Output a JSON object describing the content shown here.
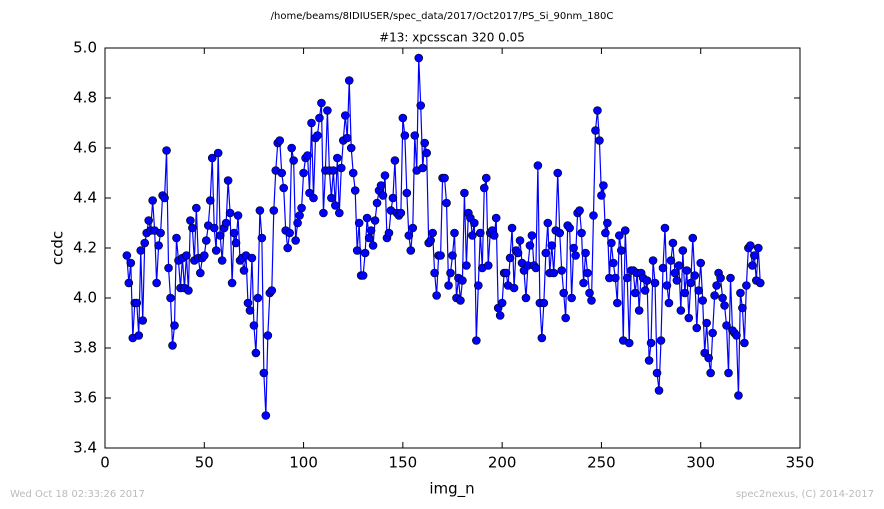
{
  "chart_data": {
    "type": "line",
    "suptitle": "/home/beams/8IDIUSER/spec_data/2017/Oct2017/PS_Si_90nm_180C",
    "title": "#13: xpcsscan 320 0.05",
    "xlabel": "img_n",
    "ylabel": "ccdc",
    "footer_left": "Wed Oct 18 02:33:26 2017",
    "footer_right": "spec2nexus, (C) 2014-2017",
    "xlim": [
      0,
      350
    ],
    "xticks": [
      0,
      50,
      100,
      150,
      200,
      250,
      300,
      350
    ],
    "ylim": [
      3.4,
      5.0
    ],
    "yticks": [
      {
        "value": 3.4,
        "label": "3.4"
      },
      {
        "value": 3.6,
        "label": "3.6"
      },
      {
        "value": 3.8,
        "label": "3.8"
      },
      {
        "value": 4.0,
        "label": "4.0"
      },
      {
        "value": 4.2,
        "label": "4.2"
      },
      {
        "value": 4.4,
        "label": "4.4"
      },
      {
        "value": 4.6,
        "label": "4.6"
      },
      {
        "value": 4.8,
        "label": "4.8"
      },
      {
        "value": 5.0,
        "label": "5.0"
      }
    ],
    "grid": false,
    "x": [
      11,
      12,
      13,
      14,
      15,
      16,
      17,
      18,
      19,
      20,
      21,
      22,
      23,
      24,
      25,
      26,
      27,
      28,
      29,
      30,
      31,
      32,
      33,
      34,
      35,
      36,
      37,
      38,
      39,
      40,
      41,
      42,
      43,
      44,
      45,
      46,
      47,
      48,
      49,
      50,
      51,
      52,
      53,
      54,
      55,
      56,
      57,
      58,
      59,
      60,
      61,
      62,
      63,
      64,
      65,
      66,
      67,
      68,
      69,
      70,
      71,
      72,
      73,
      74,
      75,
      76,
      77,
      78,
      79,
      80,
      81,
      82,
      83,
      84,
      85,
      86,
      87,
      88,
      89,
      90,
      91,
      92,
      93,
      94,
      95,
      96,
      97,
      98,
      99,
      100,
      101,
      102,
      103,
      104,
      105,
      106,
      107,
      108,
      109,
      110,
      111,
      112,
      113,
      114,
      115,
      116,
      117,
      118,
      119,
      120,
      121,
      122,
      123,
      124,
      125,
      126,
      127,
      128,
      129,
      130,
      131,
      132,
      133,
      134,
      135,
      136,
      137,
      138,
      139,
      140,
      141,
      142,
      143,
      144,
      145,
      146,
      147,
      148,
      149,
      150,
      151,
      152,
      153,
      154,
      155,
      156,
      157,
      158,
      159,
      160,
      161,
      162,
      163,
      164,
      165,
      166,
      167,
      168,
      169,
      170,
      171,
      172,
      173,
      174,
      175,
      176,
      177,
      178,
      179,
      180,
      181,
      182,
      183,
      184,
      185,
      186,
      187,
      188,
      189,
      190,
      191,
      192,
      193,
      194,
      195,
      196,
      197,
      198,
      199,
      200,
      201,
      202,
      203,
      204,
      205,
      206,
      207,
      208,
      209,
      210,
      211,
      212,
      213,
      214,
      215,
      216,
      217,
      218,
      219,
      220,
      221,
      222,
      223,
      224,
      225,
      226,
      227,
      228,
      229,
      230,
      231,
      232,
      233,
      234,
      235,
      236,
      237,
      238,
      239,
      240,
      241,
      242,
      243,
      244,
      245,
      246,
      247,
      248,
      249,
      250,
      251,
      252,
      253,
      254,
      255,
      256,
      257,
      258,
      259,
      260,
      261,
      262,
      263,
      264,
      265,
      266,
      267,
      268,
      269,
      270,
      271,
      272,
      273,
      274,
      275,
      276,
      277,
      278,
      279,
      280,
      281,
      282,
      283,
      284,
      285,
      286,
      287,
      288,
      289,
      290,
      291,
      292,
      293,
      294,
      295,
      296,
      297,
      298,
      299,
      300,
      301,
      302,
      303,
      304,
      305,
      306,
      307,
      308,
      309,
      310,
      311,
      312,
      313,
      314,
      315,
      316,
      317,
      318,
      319,
      320,
      321,
      322,
      323,
      324,
      325,
      326,
      327,
      328,
      329,
      330
    ],
    "series": [
      {
        "name": "ccdc",
        "color": "#0000ff",
        "values": [
          4.17,
          4.06,
          4.14,
          3.84,
          3.98,
          3.98,
          3.85,
          4.19,
          3.91,
          4.22,
          4.26,
          4.31,
          4.27,
          4.39,
          4.27,
          4.06,
          4.21,
          4.26,
          4.41,
          4.4,
          4.59,
          4.12,
          4.0,
          3.81,
          3.89,
          4.24,
          4.15,
          4.04,
          4.16,
          4.04,
          4.17,
          4.03,
          4.31,
          4.28,
          4.15,
          4.36,
          4.16,
          4.1,
          4.16,
          4.17,
          4.23,
          4.29,
          4.39,
          4.56,
          4.28,
          4.19,
          4.58,
          4.25,
          4.15,
          4.28,
          4.3,
          4.47,
          4.34,
          4.06,
          4.26,
          4.22,
          4.33,
          4.15,
          4.16,
          4.11,
          4.17,
          3.98,
          3.95,
          4.16,
          3.89,
          3.78,
          4.0,
          4.35,
          4.24,
          3.7,
          3.53,
          3.85,
          4.02,
          4.03,
          4.35,
          4.51,
          4.62,
          4.63,
          4.5,
          4.44,
          4.27,
          4.2,
          4.26,
          4.6,
          4.55,
          4.23,
          4.3,
          4.33,
          4.36,
          4.5,
          4.56,
          4.57,
          4.42,
          4.7,
          4.4,
          4.64,
          4.65,
          4.72,
          4.78,
          4.34,
          4.51,
          4.75,
          4.51,
          4.4,
          4.51,
          4.37,
          4.56,
          4.34,
          4.52,
          4.63,
          4.73,
          4.64,
          4.87,
          4.6,
          4.5,
          4.43,
          4.19,
          4.3,
          4.09,
          4.09,
          4.18,
          4.32,
          4.24,
          4.27,
          4.21,
          4.31,
          4.38,
          4.43,
          4.45,
          4.41,
          4.49,
          4.24,
          4.26,
          4.35,
          4.4,
          4.55,
          4.34,
          4.33,
          4.34,
          4.72,
          4.65,
          4.42,
          4.25,
          4.19,
          4.28,
          4.65,
          4.51,
          4.96,
          4.77,
          4.52,
          4.62,
          4.58,
          4.22,
          4.23,
          4.26,
          4.1,
          4.01,
          4.17,
          4.17,
          4.48,
          4.48,
          4.38,
          4.05,
          4.1,
          4.17,
          4.26,
          4.0,
          4.08,
          3.99,
          4.07,
          4.42,
          4.13,
          4.34,
          4.32,
          4.25,
          4.3,
          3.83,
          4.05,
          4.26,
          4.12,
          4.44,
          4.48,
          4.13,
          4.26,
          4.27,
          4.25,
          4.32,
          3.96,
          3.93,
          3.98,
          4.1,
          4.1,
          4.05,
          4.16,
          4.28,
          4.04,
          4.19,
          4.18,
          4.23,
          4.14,
          4.11,
          4.0,
          4.13,
          4.21,
          4.25,
          4.13,
          4.12,
          4.53,
          3.98,
          3.84,
          3.98,
          4.18,
          4.3,
          4.1,
          4.21,
          4.1,
          4.27,
          4.5,
          4.26,
          4.11,
          4.02,
          3.92,
          4.29,
          4.28,
          4.0,
          4.2,
          4.17,
          4.34,
          4.35,
          4.26,
          4.06,
          4.18,
          4.1,
          4.02,
          3.99,
          4.33,
          4.67,
          4.75,
          4.63,
          4.41,
          4.45,
          4.26,
          4.3,
          4.08,
          4.22,
          4.14,
          4.08,
          3.98,
          4.25,
          4.19,
          3.83,
          4.27,
          4.08,
          3.82,
          4.11,
          4.11,
          4.02,
          4.1,
          3.95,
          4.1,
          4.08,
          4.03,
          4.07,
          3.75,
          3.82,
          4.15,
          4.06,
          3.7,
          3.63,
          3.83,
          4.12,
          4.28,
          4.05,
          3.98,
          4.15,
          4.22,
          4.1,
          4.07,
          4.13,
          3.95,
          4.19,
          4.02,
          4.11,
          3.92,
          4.06,
          4.24,
          4.09,
          3.88,
          4.03,
          4.14,
          3.99,
          3.78,
          3.9,
          3.76,
          3.7,
          3.86,
          4.01,
          4.05,
          4.1,
          4.08,
          4.0,
          3.97,
          3.89,
          3.7,
          4.08,
          3.87,
          3.86,
          3.85,
          3.61,
          4.02,
          3.96,
          3.82,
          4.05,
          4.2,
          4.21,
          4.13,
          4.17,
          4.07,
          4.2,
          4.06
        ]
      }
    ]
  }
}
